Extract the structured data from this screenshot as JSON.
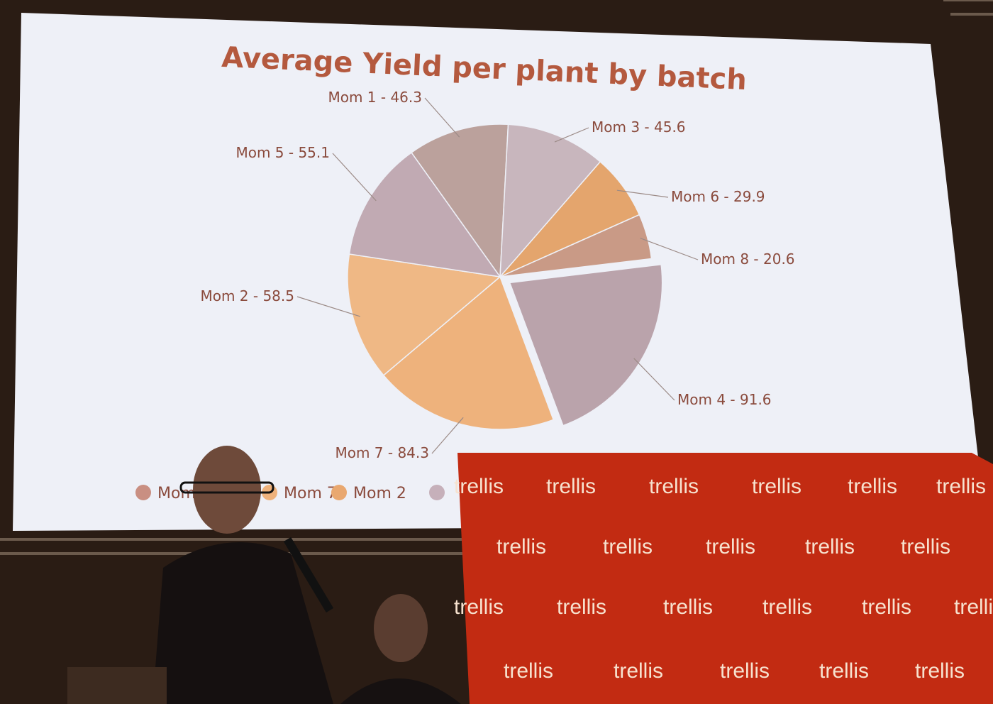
{
  "chart_data": {
    "type": "pie",
    "title": "Average Yield per plant by batch",
    "slices": [
      {
        "name": "Mom 1",
        "value": 46.3,
        "label": "Mom 1 - 46.3",
        "color": "#bba19c"
      },
      {
        "name": "Mom 3",
        "value": 45.6,
        "label": "Mom 3 - 45.6",
        "color": "#c8b6bd"
      },
      {
        "name": "Mom 6",
        "value": 29.9,
        "label": "Mom 6 - 29.9",
        "color": "#e4a56d"
      },
      {
        "name": "Mom 8",
        "value": 20.6,
        "label": "Mom 8 - 20.6",
        "color": "#c99a86"
      },
      {
        "name": "Mom 4",
        "value": 91.6,
        "label": "Mom 4 - 91.6",
        "color": "#baa3ab",
        "exploded": true
      },
      {
        "name": "Mom 7",
        "value": 84.3,
        "label": "Mom 7 - 84.3",
        "color": "#eeb27c"
      },
      {
        "name": "Mom 2",
        "value": 58.5,
        "label": "Mom 2 - 58.5",
        "color": "#efb885"
      },
      {
        "name": "Mom 5",
        "value": 55.1,
        "label": "Mom 5 - 55.1",
        "color": "#c1aab3"
      }
    ],
    "legend": {
      "position": "bottom",
      "items": [
        {
          "label": "Mom",
          "color": "#c98f82"
        },
        {
          "label": "Mom 7",
          "color": "#eeb27c"
        },
        {
          "label": "Mom 2",
          "color": "#e9a870"
        },
        {
          "label": "",
          "color": "#c6b0ba"
        }
      ]
    }
  },
  "banner": {
    "brand": "trellis",
    "color": "#c22b12"
  },
  "colors": {
    "screen": "#eef0f7",
    "title": "#b4593e",
    "label": "#8a4a3c"
  }
}
